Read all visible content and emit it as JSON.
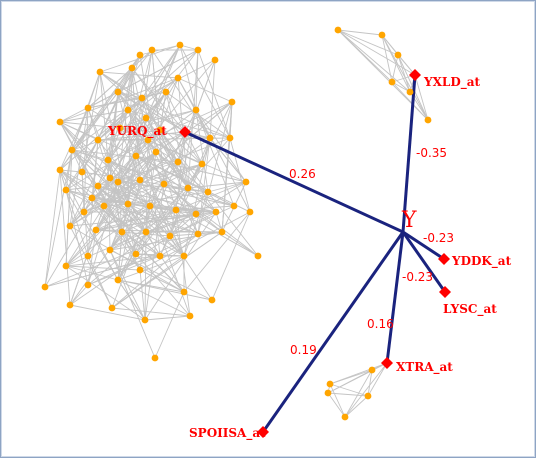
{
  "diagram": {
    "center_label": "Y",
    "colors": {
      "hub_edge": "#1a237e",
      "grey_edge": "#c4c4c4",
      "orange_node": "#ffa500",
      "red_node": "#ff0000",
      "label": "#ff0000"
    },
    "targets": [
      {
        "label": "YURQ_at",
        "weight": "0.26"
      },
      {
        "label": "YXLD_at",
        "weight": "-0.35"
      },
      {
        "label": "YDDK_at",
        "weight": "-0.23"
      },
      {
        "label": "LYSC_at",
        "weight": "-0.23"
      },
      {
        "label": "XTRA_at",
        "weight": "0.16"
      },
      {
        "label": "SPOIISA_at",
        "weight": "0.19"
      }
    ]
  }
}
